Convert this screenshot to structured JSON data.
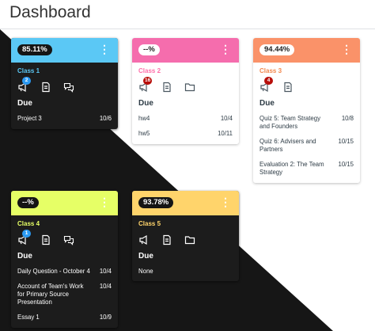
{
  "page": {
    "title": "Dashboard"
  },
  "cards": [
    {
      "grade": "85.11%",
      "class": "Class 1",
      "header_color": "#5bc8f5",
      "name_color": "#5bc8f5",
      "badge": "2",
      "badge_color": "#2b9af3",
      "due_title": "Due",
      "items": [
        {
          "name": "Project 3",
          "date": "10/6"
        }
      ]
    },
    {
      "grade": "--%",
      "class": "Class 2",
      "header_color": "#f56dad",
      "name_color": "#ff6fa9",
      "badge": "16",
      "badge_color": "#b80f0a",
      "due_title": "Due",
      "items": [
        {
          "name": "hw4",
          "date": "10/4"
        },
        {
          "name": "hw5",
          "date": "10/11"
        }
      ]
    },
    {
      "grade": "94.44%",
      "class": "Class 3",
      "header_color": "#fa9269",
      "name_color": "#f2884e",
      "badge": "4",
      "badge_color": "#b80f0a",
      "due_title": "Due",
      "items": [
        {
          "name": "Quiz 5: Team Strategy and Founders",
          "date": "10/8"
        },
        {
          "name": "Quiz 6: Advisers and Partners",
          "date": "10/15"
        },
        {
          "name": "Evaluation 2: The Team Strategy",
          "date": "10/15"
        }
      ]
    },
    {
      "grade": "--%",
      "class": "Class 4",
      "header_color": "#e6ff66",
      "name_color": "#e6ff66",
      "badge": "1",
      "badge_color": "#2b9af3",
      "due_title": "Due",
      "items": [
        {
          "name": "Daily Question - October 4",
          "date": "10/4"
        },
        {
          "name": "Account of Team's Work for Primary Source Presentation",
          "date": "10/4"
        },
        {
          "name": "Essay 1",
          "date": "10/9"
        }
      ]
    },
    {
      "grade": "93.78%",
      "class": "Class 5",
      "header_color": "#ffd46b",
      "name_color": "#ffd46b",
      "due_title": "Due",
      "none_text": "None"
    }
  ],
  "icons": {
    "announcements": "megaphone-icon",
    "assignments": "assignment-icon",
    "discussions": "discussion-icon",
    "files": "folder-icon"
  }
}
